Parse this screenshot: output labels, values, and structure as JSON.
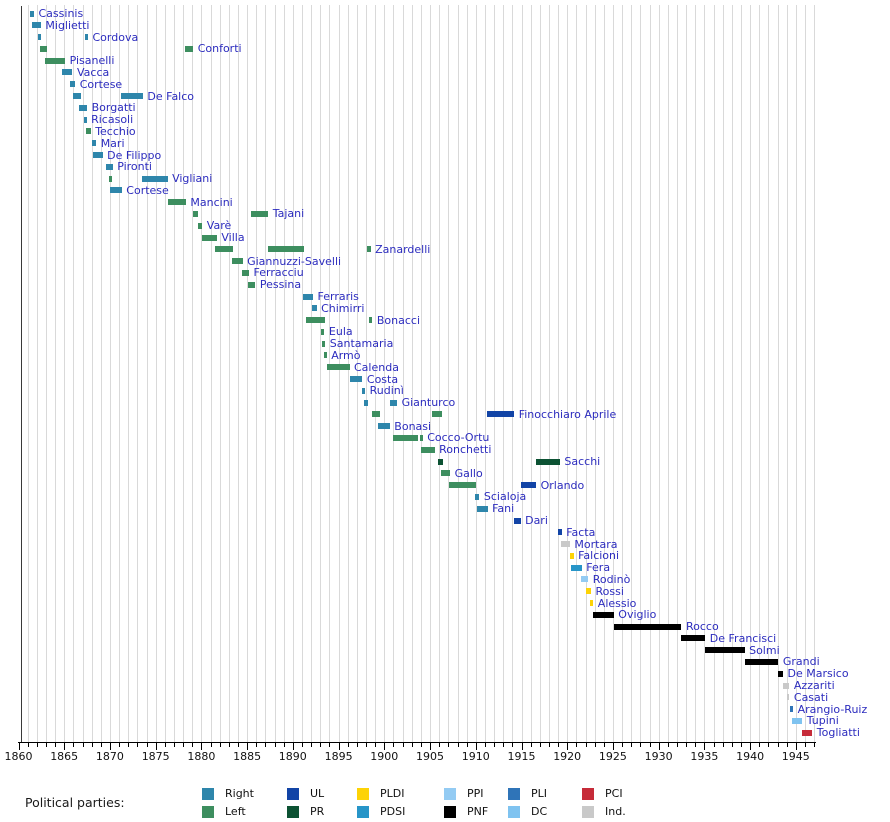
{
  "axis": {
    "start_year": 1860,
    "end_year": 1947,
    "major_tick_interval": 5,
    "minor_tick_interval": 1,
    "tick_labels": [
      "1860",
      "1865",
      "1870",
      "1875",
      "1880",
      "1885",
      "1890",
      "1895",
      "1900",
      "1905",
      "1910",
      "1915",
      "1920",
      "1925",
      "1930",
      "1935",
      "1940",
      "1945"
    ]
  },
  "parties": {
    "Right": "#2e86ab",
    "Left": "#3d8e5f",
    "UL": "#1244a6",
    "PR": "#0c5233",
    "PLDI": "#fdd306",
    "PDSI": "#2795c8",
    "PPI": "#93cbf3",
    "PNF": "#000000",
    "PLI": "#2f74b8",
    "DC": "#7fc3f0",
    "PCI": "#c62b39",
    "Ind.": "#c9c9c9"
  },
  "ui_colors": {
    "name_label": "#2c2cbe",
    "axis_text": "#111111",
    "gridline": "#d9d9d9"
  },
  "legend": {
    "label": "Political parties:",
    "items": [
      {
        "label": "Right",
        "party": "Right"
      },
      {
        "label": "Left",
        "party": "Left"
      },
      {
        "label": "UL",
        "party": "UL"
      },
      {
        "label": "PR",
        "party": "PR"
      },
      {
        "label": "PLDI",
        "party": "PLDI"
      },
      {
        "label": "PDSI",
        "party": "PDSI"
      },
      {
        "label": "PPI",
        "party": "PPI"
      },
      {
        "label": "PNF",
        "party": "PNF"
      },
      {
        "label": "PLI",
        "party": "PLI"
      },
      {
        "label": "DC",
        "party": "DC"
      },
      {
        "label": "PCI",
        "party": "PCI"
      },
      {
        "label": "Ind.",
        "party": "Ind."
      }
    ]
  },
  "chart_data": {
    "type": "gantt-timeline",
    "unit": "year",
    "x_range": [
      1860,
      1947
    ],
    "grid": "vertical-yearly",
    "legend_position": "bottom",
    "ministers": [
      {
        "name": "Cassinis",
        "terms": [
          [
            1861.3,
            1861.7,
            "Right"
          ]
        ]
      },
      {
        "name": "Miglietti",
        "terms": [
          [
            1861.5,
            1862.45,
            "Right"
          ]
        ]
      },
      {
        "name": "Cordova",
        "terms": [
          [
            1862.1,
            1862.5,
            "Right"
          ],
          [
            1867.3,
            1867.6,
            "Right"
          ]
        ]
      },
      {
        "name": "Conforti",
        "terms": [
          [
            1862.4,
            1863.1,
            "Left"
          ],
          [
            1878.2,
            1879.1,
            "Left"
          ]
        ]
      },
      {
        "name": "Pisanelli",
        "terms": [
          [
            1862.9,
            1865.1,
            "Left"
          ]
        ]
      },
      {
        "name": "Vacca",
        "terms": [
          [
            1864.8,
            1865.9,
            "Right"
          ]
        ]
      },
      {
        "name": "Cortese",
        "terms": [
          [
            1865.6,
            1866.2,
            "Right"
          ]
        ]
      },
      {
        "name": "De Falco",
        "terms": [
          [
            1866.0,
            1866.8,
            "Right"
          ],
          [
            1871.2,
            1873.6,
            "Right"
          ]
        ]
      },
      {
        "name": "Borgatti",
        "terms": [
          [
            1866.6,
            1867.5,
            "Right"
          ]
        ]
      },
      {
        "name": "Ricasoli",
        "terms": [
          [
            1867.2,
            1867.45,
            "Right"
          ]
        ]
      },
      {
        "name": "Tecchio",
        "terms": [
          [
            1867.4,
            1867.9,
            "Left"
          ]
        ]
      },
      {
        "name": "Mari",
        "terms": [
          [
            1868.0,
            1868.5,
            "Right"
          ]
        ]
      },
      {
        "name": "De Filippo",
        "terms": [
          [
            1868.1,
            1869.2,
            "Right"
          ]
        ]
      },
      {
        "name": "Pironti",
        "terms": [
          [
            1869.6,
            1870.3,
            "Right"
          ]
        ]
      },
      {
        "name": "Vigliani",
        "terms": [
          [
            1869.9,
            1870.2,
            "Left"
          ],
          [
            1873.5,
            1876.3,
            "Right"
          ]
        ]
      },
      {
        "name": "Cortese",
        "terms": [
          [
            1870.0,
            1871.3,
            "Right"
          ]
        ]
      },
      {
        "name": "Mancini",
        "terms": [
          [
            1876.3,
            1878.3,
            "Left"
          ]
        ]
      },
      {
        "name": "Tajani",
        "terms": [
          [
            1879.1,
            1879.6,
            "Left"
          ],
          [
            1885.4,
            1887.3,
            "Left"
          ]
        ]
      },
      {
        "name": "Varè",
        "terms": [
          [
            1879.6,
            1880.1,
            "Left"
          ]
        ]
      },
      {
        "name": "Villa",
        "terms": [
          [
            1880.1,
            1881.7,
            "Left"
          ]
        ]
      },
      {
        "name": "Zanardelli",
        "terms": [
          [
            1881.5,
            1883.5,
            "Left"
          ],
          [
            1887.3,
            1891.2,
            "Left"
          ],
          [
            1898.1,
            1898.5,
            "Left"
          ]
        ]
      },
      {
        "name": "Giannuzzi-Savelli",
        "terms": [
          [
            1883.3,
            1884.5,
            "Left"
          ]
        ]
      },
      {
        "name": "Ferracciu",
        "terms": [
          [
            1884.4,
            1885.2,
            "Left"
          ]
        ]
      },
      {
        "name": "Pessina",
        "terms": [
          [
            1885.1,
            1885.9,
            "Left"
          ]
        ]
      },
      {
        "name": "Ferraris",
        "terms": [
          [
            1891.1,
            1892.2,
            "Right"
          ]
        ]
      },
      {
        "name": "Chimirri",
        "terms": [
          [
            1892.1,
            1892.6,
            "Right"
          ]
        ]
      },
      {
        "name": "Bonacci",
        "terms": [
          [
            1891.4,
            1893.5,
            "Left"
          ],
          [
            1898.3,
            1898.7,
            "Left"
          ]
        ]
      },
      {
        "name": "Eula",
        "terms": [
          [
            1893.1,
            1893.45,
            "Left"
          ]
        ]
      },
      {
        "name": "Santamaria",
        "terms": [
          [
            1893.2,
            1893.55,
            "Left"
          ]
        ]
      },
      {
        "name": "Armò",
        "terms": [
          [
            1893.35,
            1893.7,
            "Left"
          ]
        ]
      },
      {
        "name": "Calenda",
        "terms": [
          [
            1893.7,
            1896.2,
            "Left"
          ]
        ]
      },
      {
        "name": "Costa",
        "terms": [
          [
            1896.2,
            1897.6,
            "Right"
          ]
        ]
      },
      {
        "name": "Rudinì",
        "terms": [
          [
            1897.6,
            1897.9,
            "Right"
          ]
        ]
      },
      {
        "name": "Gianturco",
        "terms": [
          [
            1897.8,
            1898.2,
            "Right"
          ],
          [
            1900.6,
            1901.4,
            "Right"
          ]
        ]
      },
      {
        "name": "Finocchiaro Aprile",
        "terms": [
          [
            1898.7,
            1899.5,
            "Left"
          ],
          [
            1905.2,
            1906.3,
            "Left"
          ],
          [
            1911.2,
            1914.2,
            "UL"
          ]
        ]
      },
      {
        "name": "Bonasi",
        "terms": [
          [
            1899.3,
            1900.6,
            "Right"
          ]
        ]
      },
      {
        "name": "Cocco-Ortu",
        "terms": [
          [
            1901.0,
            1903.7,
            "Left"
          ],
          [
            1903.9,
            1904.2,
            "Left"
          ]
        ]
      },
      {
        "name": "Ronchetti",
        "terms": [
          [
            1904.0,
            1905.5,
            "Left"
          ]
        ]
      },
      {
        "name": "Sacchi",
        "terms": [
          [
            1905.9,
            1906.4,
            "PR"
          ],
          [
            1916.6,
            1919.2,
            "PR"
          ]
        ]
      },
      {
        "name": "Gallo",
        "terms": [
          [
            1906.2,
            1907.2,
            "Left"
          ]
        ]
      },
      {
        "name": "Orlando",
        "terms": [
          [
            1907.1,
            1910.0,
            "Left"
          ],
          [
            1914.9,
            1916.6,
            "UL"
          ]
        ]
      },
      {
        "name": "Scialoja",
        "terms": [
          [
            1909.9,
            1910.4,
            "Right"
          ]
        ]
      },
      {
        "name": "Fani",
        "terms": [
          [
            1910.1,
            1911.3,
            "Right"
          ]
        ]
      },
      {
        "name": "Dari",
        "terms": [
          [
            1914.2,
            1914.9,
            "UL"
          ]
        ]
      },
      {
        "name": "Facta",
        "terms": [
          [
            1919.0,
            1919.4,
            "UL"
          ]
        ]
      },
      {
        "name": "Mortara",
        "terms": [
          [
            1919.3,
            1920.3,
            "Ind."
          ]
        ]
      },
      {
        "name": "Falcioni",
        "terms": [
          [
            1920.3,
            1920.7,
            "PLDI"
          ]
        ]
      },
      {
        "name": "Fera",
        "terms": [
          [
            1920.4,
            1921.6,
            "PDSI"
          ]
        ]
      },
      {
        "name": "Rodinò",
        "terms": [
          [
            1921.5,
            1922.3,
            "PPI"
          ]
        ]
      },
      {
        "name": "Rossi",
        "terms": [
          [
            1922.1,
            1922.6,
            "PLDI"
          ]
        ]
      },
      {
        "name": "Alessio",
        "terms": [
          [
            1922.5,
            1922.85,
            "PLDI"
          ]
        ]
      },
      {
        "name": "Oviglio",
        "terms": [
          [
            1922.8,
            1925.1,
            "PNF"
          ]
        ]
      },
      {
        "name": "Rocco",
        "terms": [
          [
            1925.1,
            1932.5,
            "PNF"
          ]
        ]
      },
      {
        "name": "De Francisci",
        "terms": [
          [
            1932.4,
            1935.1,
            "PNF"
          ]
        ]
      },
      {
        "name": "Solmi",
        "terms": [
          [
            1935.1,
            1939.4,
            "PNF"
          ]
        ]
      },
      {
        "name": "Grandi",
        "terms": [
          [
            1939.4,
            1943.1,
            "PNF"
          ]
        ]
      },
      {
        "name": "De Marsico",
        "terms": [
          [
            1943.1,
            1943.6,
            "PNF"
          ]
        ]
      },
      {
        "name": "Azzariti",
        "terms": [
          [
            1943.6,
            1944.3,
            "Ind."
          ]
        ]
      },
      {
        "name": "Casati",
        "terms": [
          [
            1944.0,
            1944.3,
            "Ind."
          ]
        ]
      },
      {
        "name": "Arangio-Ruiz",
        "terms": [
          [
            1944.4,
            1944.7,
            "PLI"
          ]
        ]
      },
      {
        "name": "Tupini",
        "terms": [
          [
            1944.6,
            1945.7,
            "DC"
          ]
        ]
      },
      {
        "name": "Togliatti",
        "terms": [
          [
            1945.7,
            1946.8,
            "PCI"
          ]
        ]
      }
    ]
  }
}
